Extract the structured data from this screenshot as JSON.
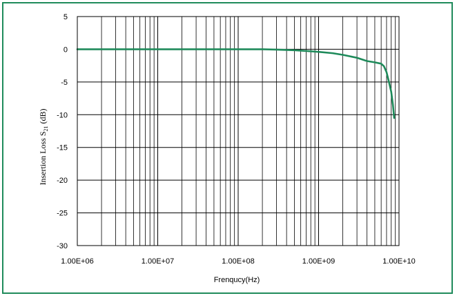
{
  "chart_data": {
    "type": "line",
    "title": "",
    "xlabel": "Frenqucy(Hz)",
    "ylabel": {
      "prefix": "Insertion Loss S",
      "subscript": "21",
      "suffix": " (dB)"
    },
    "x_scale": "log",
    "xlim": [
      1000000,
      10000000000
    ],
    "ylim": [
      -30,
      5
    ],
    "grid": true,
    "x_ticks": [
      1000000,
      10000000,
      100000000,
      1000000000,
      10000000000
    ],
    "x_tick_labels": [
      "1.00E+06",
      "1.00E+07",
      "1.00E+08",
      "1.00E+09",
      "1.00E+10"
    ],
    "y_ticks": [
      5,
      0,
      -5,
      -10,
      -15,
      -20,
      -25,
      -30
    ],
    "y_tick_labels": [
      "5",
      "0",
      "-5",
      "-10",
      "-15",
      "-20",
      "-25",
      "-30"
    ],
    "series": [
      {
        "color": "#1e8a5a",
        "x": [
          1000000,
          3000000,
          10000000,
          30000000,
          100000000,
          200000000,
          300000000,
          500000000,
          800000000,
          1000000000,
          1500000000,
          2000000000,
          3000000000,
          4000000000,
          5000000000,
          6000000000,
          6500000000,
          7000000000,
          7500000000,
          8000000000,
          8400000000,
          8700000000
        ],
        "y": [
          0.0,
          0.0,
          0.0,
          0.0,
          0.0,
          0.0,
          -0.05,
          -0.15,
          -0.3,
          -0.4,
          -0.6,
          -0.85,
          -1.3,
          -1.8,
          -2.0,
          -2.2,
          -2.6,
          -3.5,
          -5.0,
          -6.5,
          -8.5,
          -10.5
        ]
      }
    ]
  }
}
